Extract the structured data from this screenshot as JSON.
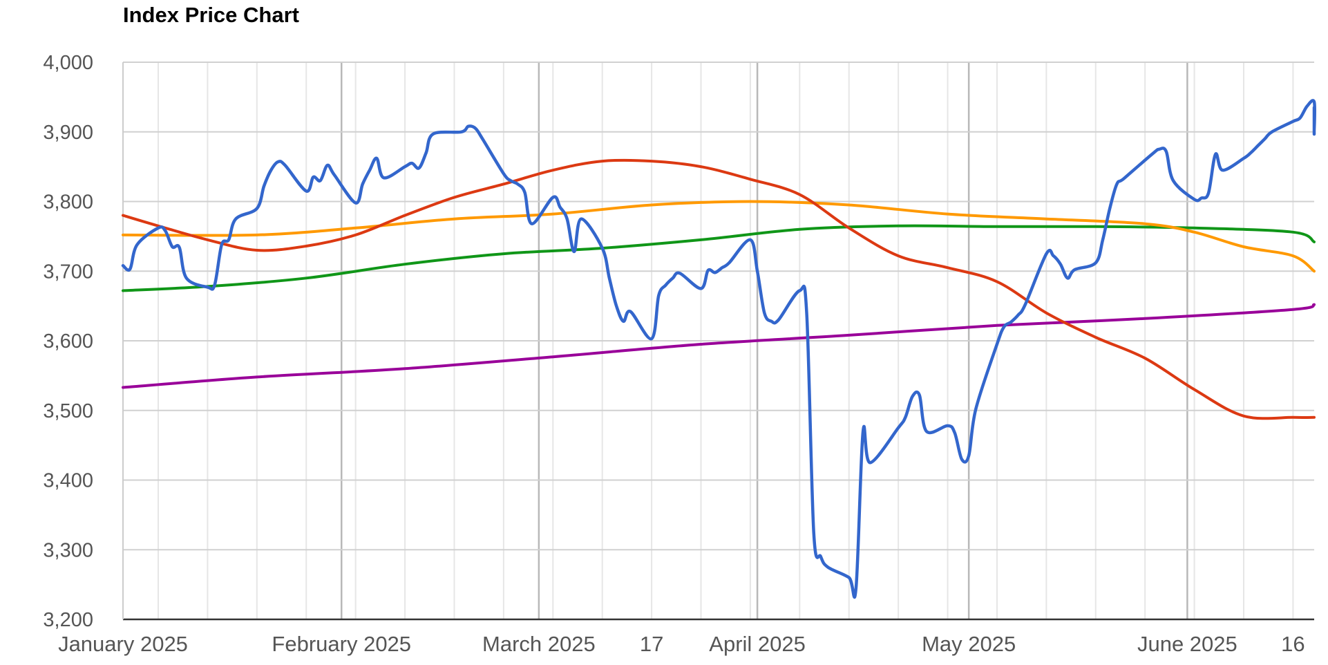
{
  "chart_data": {
    "type": "line",
    "title": "Index Price Chart",
    "xlabel": "",
    "ylabel": "",
    "ylim": [
      3200,
      4000
    ],
    "y_ticks": [
      "4,000",
      "3,900",
      "3,800",
      "3,700",
      "3,600",
      "3,500",
      "3,400",
      "3,300",
      "3,200"
    ],
    "x_range": [
      "2025-01-01",
      "2025-06-19"
    ],
    "x_tick_labels": [
      {
        "date": "2025-01-01",
        "label": "January 2025"
      },
      {
        "date": "2025-02-01",
        "label": "February 2025"
      },
      {
        "date": "2025-03-01",
        "label": "March 2025"
      },
      {
        "date": "2025-03-17",
        "label": "17"
      },
      {
        "date": "2025-04-01",
        "label": "April 2025"
      },
      {
        "date": "2025-05-01",
        "label": "May 2025"
      },
      {
        "date": "2025-06-01",
        "label": "June 2025"
      },
      {
        "date": "2025-06-16",
        "label": "16"
      }
    ],
    "major_gridlines": [
      "2025-02-01",
      "2025-03-01",
      "2025-04-01",
      "2025-05-01",
      "2025-06-01"
    ],
    "minor_gridlines": [
      "2025-01-06",
      "2025-01-13",
      "2025-01-20",
      "2025-01-27",
      "2025-02-03",
      "2025-02-10",
      "2025-02-17",
      "2025-02-24",
      "2025-03-03",
      "2025-03-10",
      "2025-03-17",
      "2025-03-24",
      "2025-03-31",
      "2025-04-07",
      "2025-04-14",
      "2025-04-21",
      "2025-04-28",
      "2025-05-05",
      "2025-05-12",
      "2025-05-19",
      "2025-05-26",
      "2025-06-02",
      "2025-06-09",
      "2025-06-16"
    ],
    "grid": true,
    "series": [
      {
        "color": "#3366cc",
        "width": 4.5,
        "points": [
          [
            "2025-01-01",
            3708
          ],
          [
            "2025-01-02",
            3703
          ],
          [
            "2025-01-03",
            3738
          ],
          [
            "2025-01-06",
            3762
          ],
          [
            "2025-01-07",
            3758
          ],
          [
            "2025-01-08",
            3735
          ],
          [
            "2025-01-09",
            3734
          ],
          [
            "2025-01-10",
            3690
          ],
          [
            "2025-01-13",
            3677
          ],
          [
            "2025-01-14",
            3680
          ],
          [
            "2025-01-15",
            3738
          ],
          [
            "2025-01-16",
            3745
          ],
          [
            "2025-01-17",
            3775
          ],
          [
            "2025-01-20",
            3790
          ],
          [
            "2025-01-21",
            3822
          ],
          [
            "2025-01-22",
            3845
          ],
          [
            "2025-01-23",
            3857
          ],
          [
            "2025-01-24",
            3852
          ],
          [
            "2025-01-27",
            3815
          ],
          [
            "2025-01-28",
            3835
          ],
          [
            "2025-01-29",
            3830
          ],
          [
            "2025-01-30",
            3852
          ],
          [
            "2025-01-31",
            3838
          ],
          [
            "2025-02-03",
            3798
          ],
          [
            "2025-02-04",
            3825
          ],
          [
            "2025-02-05",
            3845
          ],
          [
            "2025-02-06",
            3862
          ],
          [
            "2025-02-07",
            3834
          ],
          [
            "2025-02-10",
            3850
          ],
          [
            "2025-02-11",
            3855
          ],
          [
            "2025-02-12",
            3848
          ],
          [
            "2025-02-13",
            3870
          ],
          [
            "2025-02-14",
            3897
          ],
          [
            "2025-02-18",
            3900
          ],
          [
            "2025-02-19",
            3908
          ],
          [
            "2025-02-20",
            3905
          ],
          [
            "2025-02-21",
            3890
          ],
          [
            "2025-02-24",
            3840
          ],
          [
            "2025-02-25",
            3830
          ],
          [
            "2025-02-26",
            3825
          ],
          [
            "2025-02-27",
            3813
          ],
          [
            "2025-02-28",
            3768
          ],
          [
            "2025-03-03",
            3806
          ],
          [
            "2025-03-04",
            3792
          ],
          [
            "2025-03-05",
            3775
          ],
          [
            "2025-03-06",
            3728
          ],
          [
            "2025-03-07",
            3775
          ],
          [
            "2025-03-10",
            3733
          ],
          [
            "2025-03-11",
            3690
          ],
          [
            "2025-03-12",
            3650
          ],
          [
            "2025-03-13",
            3628
          ],
          [
            "2025-03-14",
            3642
          ],
          [
            "2025-03-17",
            3603
          ],
          [
            "2025-03-18",
            3665
          ],
          [
            "2025-03-19",
            3680
          ],
          [
            "2025-03-20",
            3690
          ],
          [
            "2025-03-21",
            3697
          ],
          [
            "2025-03-24",
            3675
          ],
          [
            "2025-03-25",
            3701
          ],
          [
            "2025-03-26",
            3698
          ],
          [
            "2025-03-27",
            3705
          ],
          [
            "2025-03-28",
            3712
          ],
          [
            "2025-03-31",
            3745
          ],
          [
            "2025-04-01",
            3700
          ],
          [
            "2025-04-02",
            3640
          ],
          [
            "2025-04-03",
            3628
          ],
          [
            "2025-04-04",
            3630
          ],
          [
            "2025-04-07",
            3672
          ],
          [
            "2025-04-08",
            3640
          ],
          [
            "2025-04-09",
            3325
          ],
          [
            "2025-04-10",
            3290
          ],
          [
            "2025-04-11",
            3275
          ],
          [
            "2025-04-14",
            3260
          ],
          [
            "2025-04-15",
            3245
          ],
          [
            "2025-04-16",
            3470
          ],
          [
            "2025-04-17",
            3425
          ],
          [
            "2025-04-21",
            3475
          ],
          [
            "2025-04-22",
            3490
          ],
          [
            "2025-04-23",
            3520
          ],
          [
            "2025-04-24",
            3522
          ],
          [
            "2025-04-25",
            3470
          ],
          [
            "2025-04-28",
            3478
          ],
          [
            "2025-04-29",
            3468
          ],
          [
            "2025-04-30",
            3430
          ],
          [
            "2025-05-01",
            3435
          ],
          [
            "2025-05-02",
            3502
          ],
          [
            "2025-05-05",
            3595
          ],
          [
            "2025-05-06",
            3620
          ],
          [
            "2025-05-07",
            3627
          ],
          [
            "2025-05-08",
            3637
          ],
          [
            "2025-05-09",
            3652
          ],
          [
            "2025-05-12",
            3725
          ],
          [
            "2025-05-13",
            3722
          ],
          [
            "2025-05-14",
            3710
          ],
          [
            "2025-05-15",
            3690
          ],
          [
            "2025-05-16",
            3702
          ],
          [
            "2025-05-19",
            3712
          ],
          [
            "2025-05-20",
            3745
          ],
          [
            "2025-05-21",
            3790
          ],
          [
            "2025-05-22",
            3825
          ],
          [
            "2025-05-23",
            3833
          ],
          [
            "2025-05-27",
            3868
          ],
          [
            "2025-05-28",
            3875
          ],
          [
            "2025-05-29",
            3872
          ],
          [
            "2025-05-30",
            3830
          ],
          [
            "2025-06-02",
            3803
          ],
          [
            "2025-06-03",
            3805
          ],
          [
            "2025-06-04",
            3812
          ],
          [
            "2025-06-05",
            3868
          ],
          [
            "2025-06-06",
            3845
          ],
          [
            "2025-06-09",
            3862
          ],
          [
            "2025-06-10",
            3870
          ],
          [
            "2025-06-11",
            3880
          ],
          [
            "2025-06-12",
            3890
          ],
          [
            "2025-06-13",
            3900
          ],
          [
            "2025-06-16",
            3915
          ],
          [
            "2025-06-17",
            3920
          ],
          [
            "2025-06-18",
            3937
          ],
          [
            "2025-06-19",
            3943
          ],
          [
            "2025-06-20",
            3902
          ],
          [
            "2025-06-23",
            3935
          ],
          [
            "2025-06-24",
            3900
          ],
          [
            "2025-06-25",
            3898
          ]
        ]
      },
      {
        "color": "#dc3912",
        "width": 4,
        "points": [
          [
            "2025-01-01",
            3780
          ],
          [
            "2025-01-06",
            3765
          ],
          [
            "2025-01-13",
            3745
          ],
          [
            "2025-01-20",
            3730
          ],
          [
            "2025-01-27",
            3736
          ],
          [
            "2025-02-03",
            3752
          ],
          [
            "2025-02-10",
            3780
          ],
          [
            "2025-02-17",
            3806
          ],
          [
            "2025-02-24",
            3825
          ],
          [
            "2025-03-03",
            3845
          ],
          [
            "2025-03-10",
            3858
          ],
          [
            "2025-03-17",
            3858
          ],
          [
            "2025-03-24",
            3850
          ],
          [
            "2025-03-31",
            3832
          ],
          [
            "2025-04-07",
            3810
          ],
          [
            "2025-04-14",
            3762
          ],
          [
            "2025-04-21",
            3722
          ],
          [
            "2025-04-28",
            3705
          ],
          [
            "2025-05-05",
            3685
          ],
          [
            "2025-05-12",
            3640
          ],
          [
            "2025-05-19",
            3605
          ],
          [
            "2025-05-26",
            3575
          ],
          [
            "2025-06-02",
            3530
          ],
          [
            "2025-06-09",
            3492
          ],
          [
            "2025-06-16",
            3490
          ],
          [
            "2025-06-23",
            3490
          ]
        ]
      },
      {
        "color": "#ff9900",
        "width": 4,
        "points": [
          [
            "2025-01-01",
            3752
          ],
          [
            "2025-01-20",
            3752
          ],
          [
            "2025-02-03",
            3762
          ],
          [
            "2025-02-17",
            3775
          ],
          [
            "2025-03-03",
            3782
          ],
          [
            "2025-03-17",
            3795
          ],
          [
            "2025-03-31",
            3800
          ],
          [
            "2025-04-14",
            3795
          ],
          [
            "2025-04-28",
            3782
          ],
          [
            "2025-05-12",
            3775
          ],
          [
            "2025-05-26",
            3768
          ],
          [
            "2025-06-02",
            3756
          ],
          [
            "2025-06-09",
            3735
          ],
          [
            "2025-06-16",
            3722
          ],
          [
            "2025-06-23",
            3700
          ]
        ]
      },
      {
        "color": "#109618",
        "width": 4,
        "points": [
          [
            "2025-01-01",
            3672
          ],
          [
            "2025-01-13",
            3678
          ],
          [
            "2025-01-27",
            3690
          ],
          [
            "2025-02-10",
            3710
          ],
          [
            "2025-02-24",
            3725
          ],
          [
            "2025-03-10",
            3733
          ],
          [
            "2025-03-24",
            3745
          ],
          [
            "2025-04-07",
            3760
          ],
          [
            "2025-04-21",
            3765
          ],
          [
            "2025-05-05",
            3764
          ],
          [
            "2025-05-19",
            3764
          ],
          [
            "2025-06-02",
            3762
          ],
          [
            "2025-06-16",
            3756
          ],
          [
            "2025-06-23",
            3742
          ]
        ]
      },
      {
        "color": "#990099",
        "width": 4,
        "points": [
          [
            "2025-01-01",
            3533
          ],
          [
            "2025-01-20",
            3548
          ],
          [
            "2025-02-10",
            3560
          ],
          [
            "2025-03-03",
            3577
          ],
          [
            "2025-03-24",
            3595
          ],
          [
            "2025-04-14",
            3608
          ],
          [
            "2025-05-05",
            3622
          ],
          [
            "2025-05-26",
            3632
          ],
          [
            "2025-06-16",
            3645
          ],
          [
            "2025-06-25",
            3652
          ]
        ]
      }
    ]
  }
}
